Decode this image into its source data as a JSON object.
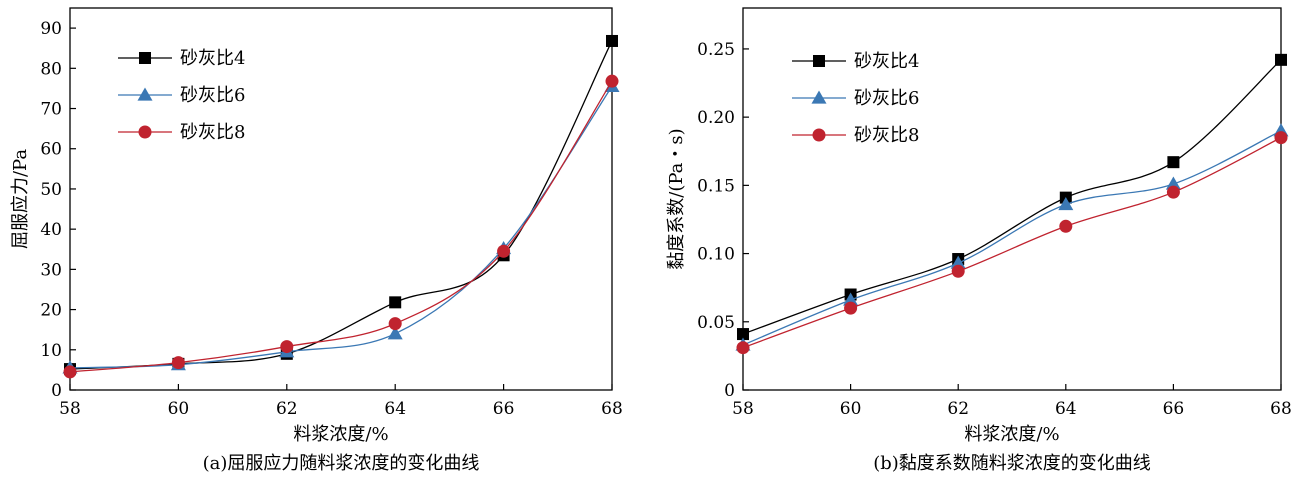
{
  "chart_data": [
    {
      "type": "line",
      "id": "a",
      "caption": "(a)屈服应力随料浆浓度的变化曲线",
      "xlabel": "料浆浓度/%",
      "ylabel": "屈服应力/Pa",
      "x": [
        58,
        60,
        62,
        64,
        66,
        68
      ],
      "xlim": [
        58,
        68
      ],
      "ylim": [
        0,
        95
      ],
      "xticks": [
        "58",
        "60",
        "62",
        "64",
        "66",
        "68"
      ],
      "yticks": [
        "0",
        "10",
        "20",
        "30",
        "40",
        "50",
        "60",
        "70",
        "80",
        "90"
      ],
      "legend_position": "top-left",
      "series": [
        {
          "name": "砂灰比4",
          "marker": "square",
          "color": "#000000",
          "values": [
            5.2,
            6.5,
            9.0,
            21.8,
            33.5,
            86.8
          ]
        },
        {
          "name": "砂灰比6",
          "marker": "triangle",
          "color": "#3b78b4",
          "values": [
            5.5,
            6.3,
            9.5,
            14.0,
            35.2,
            75.5
          ]
        },
        {
          "name": "砂灰比8",
          "marker": "circle",
          "color": "#c0232f",
          "values": [
            4.5,
            6.8,
            10.8,
            16.5,
            34.5,
            76.8
          ]
        }
      ]
    },
    {
      "type": "line",
      "id": "b",
      "caption": "(b)黏度系数随料浆浓度的变化曲线",
      "xlabel": "料浆浓度/%",
      "ylabel": "黏度系数/(Pa・s)",
      "x": [
        58,
        60,
        62,
        64,
        66,
        68
      ],
      "xlim": [
        58,
        68
      ],
      "ylim": [
        0,
        0.28
      ],
      "xticks": [
        "58",
        "60",
        "62",
        "64",
        "66",
        "68"
      ],
      "yticks": [
        "0",
        "0.05",
        "0.10",
        "0.15",
        "0.20",
        "0.25"
      ],
      "legend_position": "top-left",
      "series": [
        {
          "name": "砂灰比4",
          "marker": "square",
          "color": "#000000",
          "values": [
            0.041,
            0.07,
            0.096,
            0.141,
            0.167,
            0.242
          ]
        },
        {
          "name": "砂灰比6",
          "marker": "triangle",
          "color": "#3b78b4",
          "values": [
            0.033,
            0.066,
            0.093,
            0.136,
            0.151,
            0.19
          ]
        },
        {
          "name": "砂灰比8",
          "marker": "circle",
          "color": "#c0232f",
          "values": [
            0.031,
            0.06,
            0.087,
            0.12,
            0.145,
            0.185
          ]
        }
      ]
    }
  ]
}
